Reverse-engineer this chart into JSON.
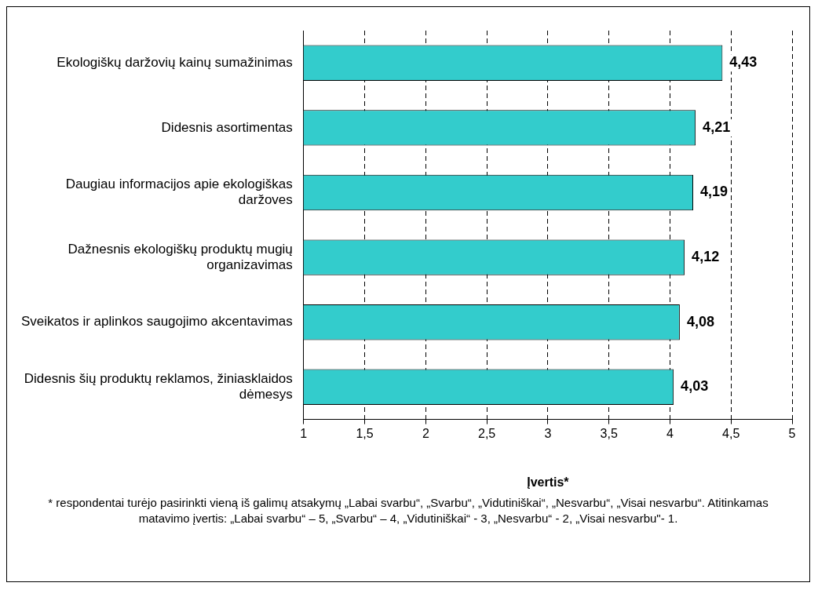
{
  "chart_data": {
    "type": "bar",
    "orientation": "horizontal",
    "categories": [
      "Ekologiškų daržovių kainų sumažinimas",
      "Didesnis asortimentas",
      "Daugiau informacijos apie ekologiškas daržoves",
      "Dažnesnis ekologiškų produktų mugių organizavimas",
      "Sveikatos ir aplinkos saugojimo akcentavimas",
      "Didesnis šių produktų reklamos, žiniasklaidos dėmesys"
    ],
    "values": [
      4.43,
      4.21,
      4.19,
      4.12,
      4.08,
      4.03
    ],
    "value_labels": [
      "4,43",
      "4,21",
      "4,19",
      "4,12",
      "4,08",
      "4,03"
    ],
    "color": "#33cccc",
    "xlim": [
      1,
      5
    ],
    "xticks": [
      1,
      {
        "value": 1.5,
        "label": "1,5"
      },
      2,
      {
        "value": 2.5,
        "label": "2,5"
      },
      3,
      {
        "value": 3.5,
        "label": "3,5"
      },
      4,
      {
        "value": 4.5,
        "label": "4,5"
      },
      5
    ],
    "grid": "x",
    "line_style": "dashed",
    "legend": false,
    "xlabel": "Įvertis*",
    "annotations": [
      "* respondentai turėjo pasirinkti vieną iš galimų atsakymų „Labai svarbu“, „Svarbu“, „Vidutiniškai“, „Nesvarbu“, „Visai nesvarbu“. Atitinkamas matavimo įvertis: „Labai svarbu“ – 5, „Svarbu“ – 4, „Vidutiniškai“ - 3, „Nesvarbu“ - 2, „Visai nesvarbu\"- 1."
    ]
  }
}
